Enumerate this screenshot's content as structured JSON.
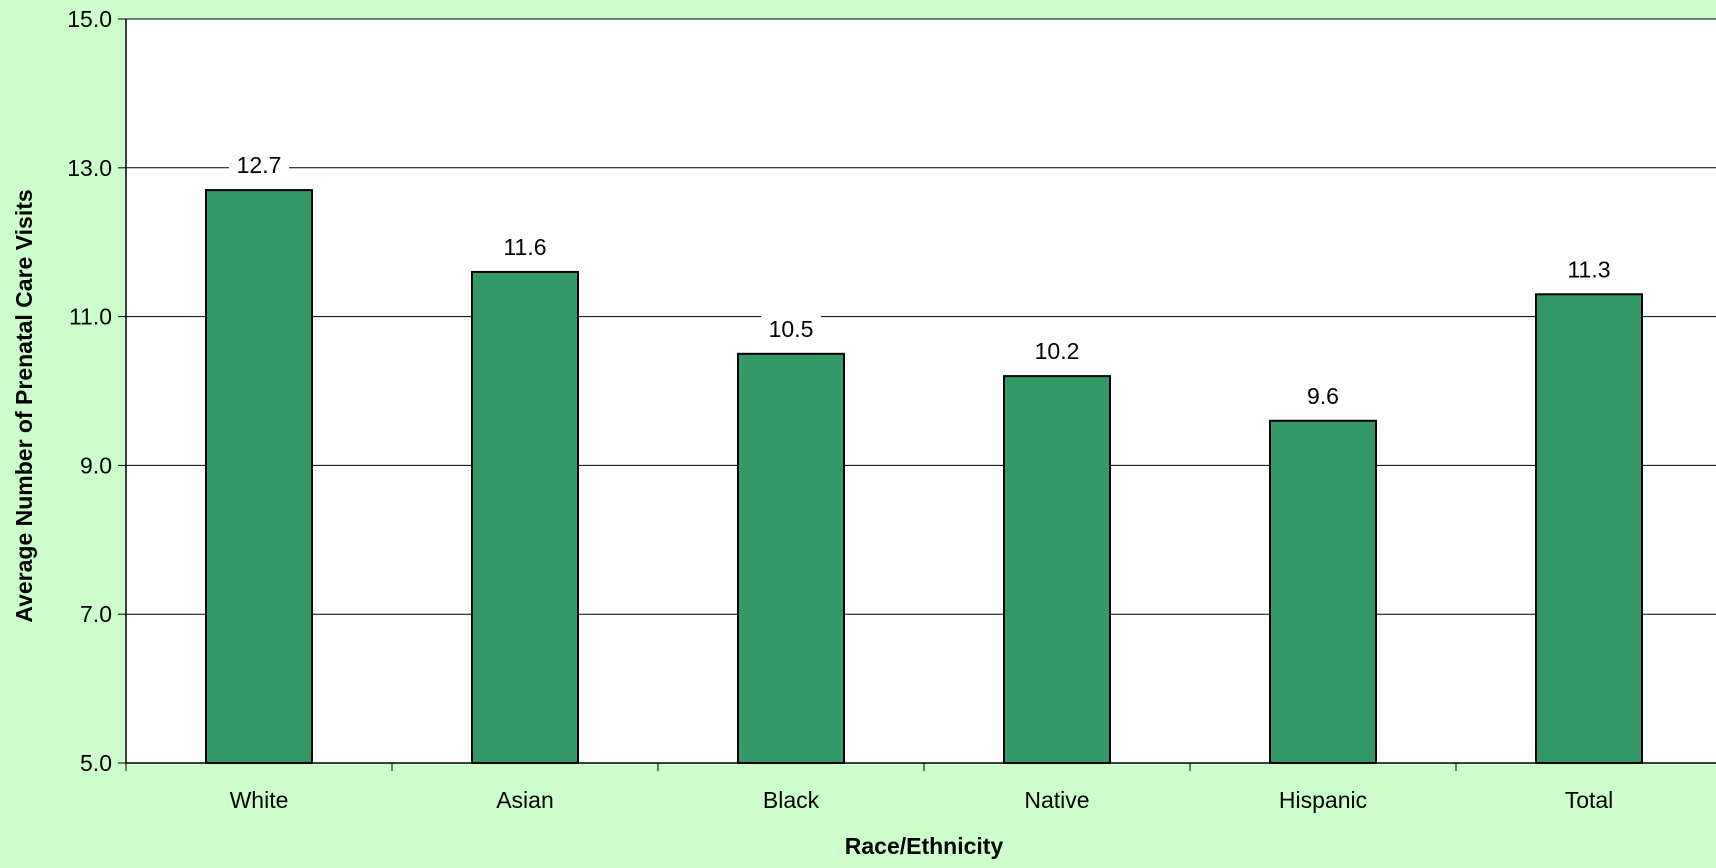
{
  "chart_data": {
    "type": "bar",
    "categories": [
      "White",
      "Asian",
      "Black",
      "Native",
      "Hispanic",
      "Total"
    ],
    "values": [
      12.7,
      11.6,
      10.5,
      10.2,
      9.6,
      11.3
    ],
    "value_labels": [
      "12.7",
      "11.6",
      "10.5",
      "10.2",
      "9.6",
      "11.3"
    ],
    "title": "",
    "xlabel": "Race/Ethnicity",
    "ylabel": "Average Number of Prenatal Care Visits",
    "ylim": [
      5.0,
      15.0
    ],
    "yticks": [
      "5.0",
      "7.0",
      "9.0",
      "11.0",
      "13.0",
      "15.0"
    ],
    "grid": true,
    "legend": "none"
  },
  "colors": {
    "background": "#ccffcc",
    "plot_area": "#ffffff",
    "bar_fill": "#339966",
    "bar_stroke": "#000000",
    "grid": "#000000"
  }
}
